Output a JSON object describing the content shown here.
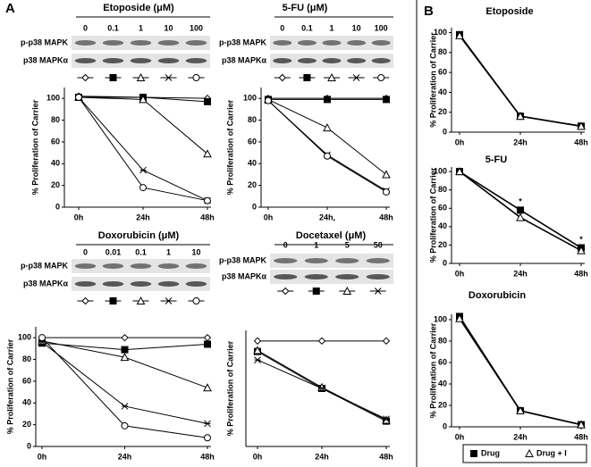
{
  "panel_labels": [
    "A",
    "B"
  ],
  "chart_data": [
    {
      "type": "line",
      "title": "Etoposide (μM)",
      "concentrations": [
        0,
        0.1,
        1,
        10,
        100
      ],
      "blot_labels": [
        "p-p38 MAPK",
        "p38 MAPKα"
      ],
      "y_label": "% Proliferation of Carrier",
      "categories": [
        "0h",
        "24h",
        "48h"
      ],
      "ylim": [
        0,
        110
      ],
      "yticks": [
        0,
        20,
        40,
        60,
        80,
        100
      ],
      "series": [
        {
          "marker": "open-diamond",
          "color": "#000000",
          "values": [
            102,
            101,
            100
          ]
        },
        {
          "marker": "filled-square",
          "color": "#000000",
          "values": [
            101,
            101,
            97
          ]
        },
        {
          "marker": "open-triangle",
          "color": "#000000",
          "values": [
            101,
            99,
            49
          ]
        },
        {
          "marker": "star",
          "color": "#000000",
          "values": [
            101,
            34,
            6
          ]
        },
        {
          "marker": "open-circle",
          "color": "#000000",
          "values": [
            101,
            18,
            6
          ]
        }
      ]
    },
    {
      "type": "line",
      "title": "5-FU (μM)",
      "concentrations": [
        0,
        0.1,
        1,
        10,
        100
      ],
      "blot_labels": [
        "p-p38 MAPK",
        "p38 MAPKα"
      ],
      "y_label": "% Proliferation of Carrier",
      "categories": [
        "0h",
        "24h,",
        "48h"
      ],
      "ylim": [
        0,
        110
      ],
      "yticks": [
        0,
        20,
        40,
        60,
        80,
        100
      ],
      "series": [
        {
          "marker": "open-diamond",
          "color": "#000000",
          "values": [
            100,
            100,
            100
          ]
        },
        {
          "marker": "filled-square",
          "color": "#000000",
          "values": [
            99,
            99,
            99
          ]
        },
        {
          "marker": "open-triangle",
          "color": "#000000",
          "values": [
            99,
            73,
            30
          ]
        },
        {
          "marker": "star",
          "color": "#000000",
          "values": [
            98,
            48,
            15
          ]
        },
        {
          "marker": "open-circle",
          "color": "#000000",
          "values": [
            98,
            47,
            14
          ]
        }
      ]
    },
    {
      "type": "line",
      "title": "Doxorubicin (μM)",
      "concentrations": [
        0,
        0.01,
        0.1,
        1,
        10
      ],
      "blot_labels": [
        "p-p38 MAPK",
        "p38 MAPKα"
      ],
      "y_label": "% Proliferation of Carrier",
      "categories": [
        "0h",
        "24h",
        "48h"
      ],
      "ylim": [
        0,
        110
      ],
      "yticks": [
        0,
        20,
        40,
        60,
        80,
        100
      ],
      "series": [
        {
          "marker": "open-diamond",
          "color": "#000000",
          "values": [
            100,
            100,
            100
          ]
        },
        {
          "marker": "filled-square",
          "color": "#000000",
          "values": [
            95,
            89,
            94
          ]
        },
        {
          "marker": "open-triangle",
          "color": "#000000",
          "values": [
            97,
            82,
            54
          ]
        },
        {
          "marker": "star",
          "color": "#000000",
          "values": [
            96,
            37,
            21
          ]
        },
        {
          "marker": "open-circle",
          "color": "#000000",
          "values": [
            100,
            19,
            8
          ]
        }
      ]
    },
    {
      "type": "line",
      "title": "Docetaxel (μM)",
      "concentrations": [
        0,
        1,
        5,
        50
      ],
      "blot_labels": [
        "p-p38 MAPK",
        "p38 MAPKα"
      ],
      "y_label": "% Proliferation of Carrier",
      "categories": [
        "0h",
        "24h",
        "48h"
      ],
      "ylim": [
        0,
        110
      ],
      "series": [
        {
          "marker": "open-diamond",
          "color": "#000000",
          "values": [
            100,
            100,
            100
          ]
        },
        {
          "marker": "filled-square",
          "color": "#000000",
          "values": [
            90,
            55,
            24
          ]
        },
        {
          "marker": "open-triangle",
          "color": "#000000",
          "values": [
            91,
            56,
            25
          ]
        },
        {
          "marker": "star",
          "color": "#000000",
          "values": [
            82,
            55,
            26
          ]
        }
      ]
    },
    {
      "type": "line",
      "title": "Etoposide",
      "y_label": "% Proliferation of Carrier",
      "categories": [
        "0h",
        "24h",
        "48h"
      ],
      "ylim": [
        0,
        105
      ],
      "yticks": [
        0,
        20,
        40,
        60,
        80,
        100
      ],
      "series": [
        {
          "name": "Drug",
          "marker": "filled-square",
          "color": "#000000",
          "values": [
            98,
            16,
            6
          ]
        },
        {
          "name": "Drug + I",
          "marker": "open-triangle",
          "color": "#000000",
          "values": [
            97,
            16,
            6
          ]
        }
      ]
    },
    {
      "type": "line",
      "title": "5-FU",
      "y_label": "% Proliferation of Carrier",
      "categories": [
        "0h",
        "24h",
        "48h"
      ],
      "ylim": [
        0,
        105
      ],
      "yticks": [
        0,
        20,
        40,
        60,
        80,
        100
      ],
      "annotations": [
        {
          "text": "*",
          "category": "24h"
        },
        {
          "text": "*",
          "category": "48h"
        }
      ],
      "series": [
        {
          "marker": "filled-square",
          "color": "#000000",
          "values": [
            100,
            58,
            17
          ]
        },
        {
          "marker": "open-triangle",
          "color": "#000000",
          "values": [
            100,
            50,
            14
          ]
        }
      ]
    },
    {
      "type": "line",
      "title": "Doxorubicin",
      "y_label": "% Proliferation of Carrier",
      "categories": [
        "0h",
        "24h",
        "48h"
      ],
      "ylim": [
        0,
        105
      ],
      "yticks": [
        0,
        20,
        40,
        60,
        80,
        100
      ],
      "series": [
        {
          "marker": "filled-square",
          "color": "#000000",
          "values": [
            103,
            15,
            2
          ]
        },
        {
          "marker": "open-triangle",
          "color": "#000000",
          "values": [
            101,
            15,
            2
          ]
        }
      ]
    }
  ]
}
